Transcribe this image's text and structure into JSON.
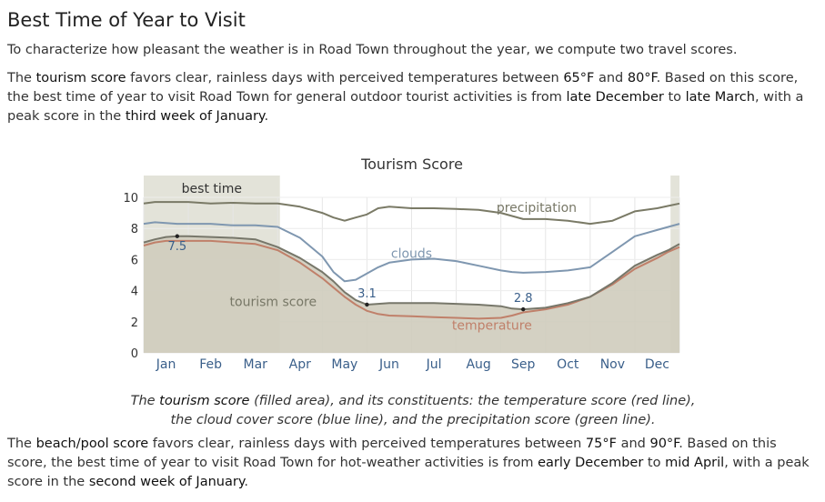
{
  "page": {
    "heading": "Best Time of Year to Visit",
    "intro": "To characterize how pleasant the weather is in Road Town throughout the year, we compute two travel scores.",
    "tourism_paragraph": {
      "pre": "The ",
      "k1": "tourism score",
      "t1": " favors clear, rainless days with perceived temperatures between ",
      "k2": "65°F",
      "t2": " and ",
      "k3": "80°F",
      "t3": ". Based on this score, the best time of year to visit Road Town for general outdoor tourist activities is from ",
      "k4": "late December",
      "t4": " to ",
      "k5": "late March",
      "t5": ", with a peak score in the ",
      "k6": "third week of January",
      "t6": "."
    },
    "caption": {
      "pre": "The ",
      "k1": "tourism score",
      "t1": " (filled area), and its constituents: the temperature score (red line), the cloud cover score (blue line), and the precipitation score (green line)."
    },
    "beach_paragraph": {
      "pre": "The ",
      "k1": "beach/pool score",
      "t1": " favors clear, rainless days with perceived temperatures between ",
      "k2": "75°F",
      "t2": " and ",
      "k3": "90°F",
      "t3": ". Based on this score, the best time of year to visit Road Town for hot-weather activities is from ",
      "k4": "early December",
      "t4": " to ",
      "k5": "mid April",
      "t5": ", with a peak score in the ",
      "k6": "second week of January",
      "t6": "."
    }
  },
  "chart_data": {
    "type": "area",
    "title": "Tourism Score",
    "xlabel": "",
    "ylabel": "",
    "ylim": [
      0,
      10
    ],
    "yticks": [
      0,
      2,
      4,
      6,
      8,
      10
    ],
    "months": [
      "Jan",
      "Feb",
      "Mar",
      "Apr",
      "May",
      "Jun",
      "Jul",
      "Aug",
      "Sep",
      "Oct",
      "Nov",
      "Dec"
    ],
    "x_unit": "month",
    "grid": true,
    "best_time_label": "best time",
    "best_time_ranges": [
      [
        0,
        3.05
      ],
      [
        11.8,
        12
      ]
    ],
    "colors": {
      "tourism_fill": "#cfccbc",
      "tourism_line": "#77776a",
      "temperature": "#c0806a",
      "clouds": "#7f97b0",
      "precipitation": "#7a7a66",
      "best_band": "#e3e3d9",
      "peak_label": "#3a5f8a"
    },
    "x": [
      0,
      0.25,
      0.5,
      0.75,
      1,
      1.5,
      2,
      2.5,
      3,
      3.5,
      4,
      4.25,
      4.5,
      4.75,
      5,
      5.25,
      5.5,
      6,
      6.5,
      7,
      7.5,
      8,
      8.25,
      8.5,
      9,
      9.5,
      10,
      10.5,
      11,
      11.5,
      11.75,
      12
    ],
    "series": [
      {
        "name": "tourism score",
        "key": "tourism",
        "values": [
          7.1,
          7.3,
          7.45,
          7.5,
          7.5,
          7.45,
          7.4,
          7.3,
          6.8,
          6.1,
          5.2,
          4.6,
          3.9,
          3.4,
          3.1,
          3.15,
          3.2,
          3.2,
          3.2,
          3.15,
          3.1,
          3.0,
          2.85,
          2.8,
          2.9,
          3.2,
          3.6,
          4.5,
          5.6,
          6.3,
          6.6,
          7.0
        ]
      },
      {
        "name": "temperature",
        "key": "temperature",
        "values": [
          6.9,
          7.1,
          7.2,
          7.2,
          7.2,
          7.2,
          7.1,
          7.0,
          6.6,
          5.8,
          4.8,
          4.2,
          3.6,
          3.1,
          2.7,
          2.5,
          2.4,
          2.35,
          2.3,
          2.25,
          2.2,
          2.25,
          2.4,
          2.6,
          2.8,
          3.1,
          3.6,
          4.4,
          5.4,
          6.1,
          6.5,
          6.8
        ]
      },
      {
        "name": "clouds",
        "key": "clouds",
        "values": [
          8.3,
          8.4,
          8.35,
          8.3,
          8.3,
          8.3,
          8.2,
          8.2,
          8.1,
          7.4,
          6.2,
          5.2,
          4.6,
          4.7,
          5.1,
          5.5,
          5.8,
          6.0,
          6.05,
          5.9,
          5.6,
          5.3,
          5.2,
          5.15,
          5.2,
          5.3,
          5.5,
          6.5,
          7.5,
          7.9,
          8.1,
          8.3
        ]
      },
      {
        "name": "precipitation",
        "key": "precipitation",
        "values": [
          9.6,
          9.7,
          9.7,
          9.7,
          9.7,
          9.6,
          9.65,
          9.6,
          9.6,
          9.4,
          9.0,
          8.7,
          8.5,
          8.7,
          8.9,
          9.3,
          9.4,
          9.3,
          9.3,
          9.25,
          9.2,
          9.0,
          8.8,
          8.6,
          8.6,
          8.5,
          8.3,
          8.5,
          9.1,
          9.3,
          9.45,
          9.6
        ]
      }
    ],
    "annotations": [
      {
        "text": "7.5",
        "x": 0.75,
        "y": 7.5
      },
      {
        "text": "3.1",
        "x": 5,
        "y": 3.1
      },
      {
        "text": "2.8",
        "x": 8.5,
        "y": 2.8
      }
    ],
    "series_labels": [
      {
        "text": "precipitation",
        "x": 8.8,
        "y": 9.05
      },
      {
        "text": "clouds",
        "x": 6.0,
        "y": 6.1
      },
      {
        "text": "temperature",
        "x": 7.8,
        "y": 1.5
      },
      {
        "text": "tourism score",
        "x": 2.9,
        "y": 3.0
      }
    ]
  }
}
